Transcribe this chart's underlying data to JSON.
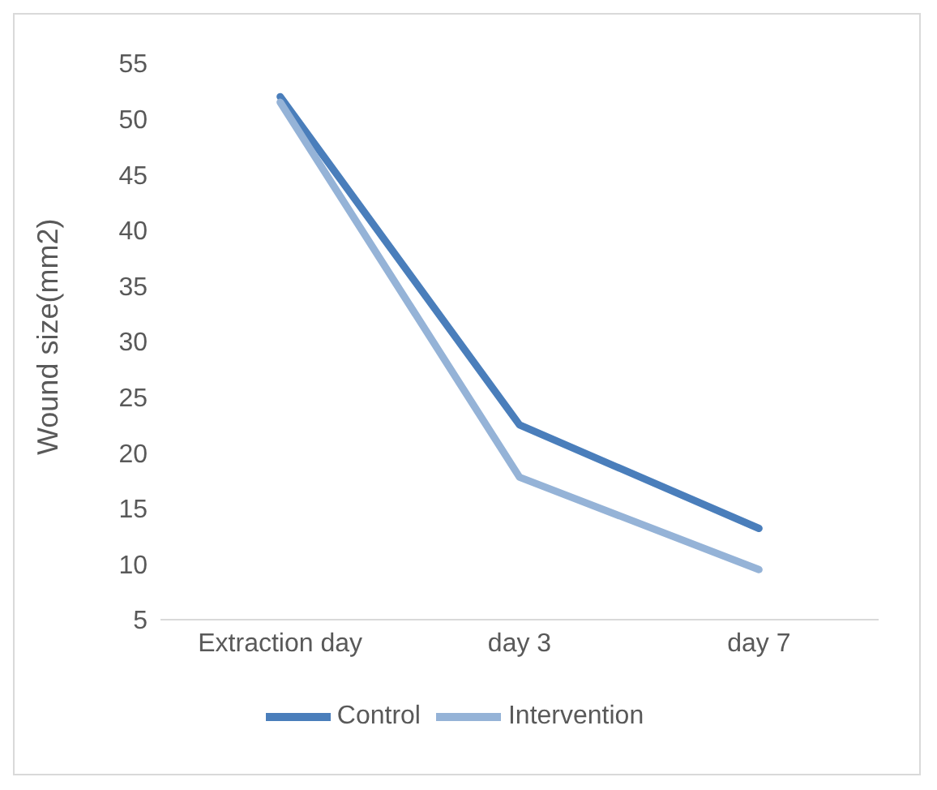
{
  "chart_data": {
    "type": "line",
    "ylabel": "Wound size(mm2)",
    "categories": [
      "Extraction day",
      "day 3",
      "day 7"
    ],
    "series": [
      {
        "name": "Control",
        "color": "#4a7ebb",
        "values": [
          52,
          22.5,
          13.2
        ]
      },
      {
        "name": "Intervention",
        "color": "#95b3d7",
        "values": [
          51.5,
          17.8,
          9.5
        ]
      }
    ],
    "ylim": [
      5,
      55
    ],
    "yticks": [
      5,
      10,
      15,
      20,
      25,
      30,
      35,
      40,
      45,
      50,
      55
    ],
    "grid": false,
    "legend": "bottom",
    "marker": "none",
    "line_style": "solid"
  }
}
